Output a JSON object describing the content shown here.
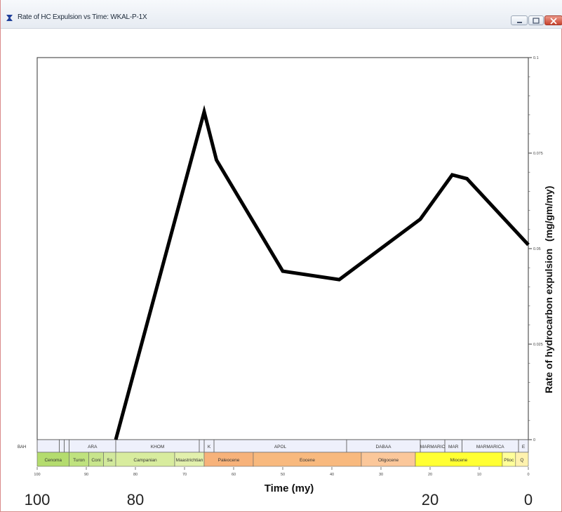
{
  "window": {
    "title": "Rate of HC Expulsion vs Time: WKAL-P-1X",
    "icon": "app-icon",
    "buttons": [
      "minimize-button",
      "maximize-button",
      "close-button"
    ]
  },
  "chart_data": {
    "type": "line",
    "x": [
      84,
      66,
      63.5,
      50,
      38.5,
      22,
      15.5,
      12.5,
      0
    ],
    "y": [
      0,
      0.0858,
      0.0732,
      0.0441,
      0.0419,
      0.0577,
      0.0693,
      0.0683,
      0.051
    ],
    "xlabel": "Time (my)",
    "ylabel": "Rate of hydrocarbon expulsion",
    "ylabel_units": "(mg/gm/my)",
    "xlim": [
      100,
      0
    ],
    "ylim": [
      0,
      0.1
    ],
    "x_ticks": [
      "100",
      "90",
      "80",
      "70",
      "60",
      "50",
      "40",
      "30",
      "20",
      "10",
      "0"
    ],
    "x_big_labels": [
      "100",
      "80",
      "20",
      "0"
    ],
    "y_ticks": [
      "0",
      "0.025",
      "0.05",
      "0.075",
      "0.1"
    ],
    "grid": false,
    "line_color": "#000000"
  },
  "strat": {
    "row1_label": "BAH",
    "formations": [
      {
        "name": "",
        "start": 100,
        "end": 95.5
      },
      {
        "name": "",
        "start": 95.5,
        "end": 94.5
      },
      {
        "name": "",
        "start": 94.5,
        "end": 93.5
      },
      {
        "name": "ARA",
        "start": 93.5,
        "end": 84
      },
      {
        "name": "KHOM",
        "start": 84,
        "end": 67
      },
      {
        "name": "",
        "start": 67,
        "end": 66
      },
      {
        "name": "K",
        "start": 66,
        "end": 64
      },
      {
        "name": "APOL",
        "start": 64,
        "end": 37
      },
      {
        "name": "DABAA",
        "start": 37,
        "end": 22
      },
      {
        "name": "MARMARIC",
        "start": 22,
        "end": 17
      },
      {
        "name": "MAR",
        "start": 17,
        "end": 13.5
      },
      {
        "name": "MARMARICA",
        "start": 13.5,
        "end": 2
      },
      {
        "name": "E",
        "start": 2,
        "end": 0
      }
    ],
    "epochs": [
      {
        "name": "Cenoma",
        "start": 100,
        "end": 93.5,
        "color": "#b4dc6e"
      },
      {
        "name": "Turon",
        "start": 93.5,
        "end": 89.5,
        "color": "#bfe27e"
      },
      {
        "name": "Coni",
        "start": 89.5,
        "end": 86.5,
        "color": "#c8e58c"
      },
      {
        "name": "Sa",
        "start": 86.5,
        "end": 84,
        "color": "#d2e99c"
      },
      {
        "name": "Campanian",
        "start": 84,
        "end": 72,
        "color": "#d8ec9e"
      },
      {
        "name": "Maastrichtian",
        "start": 72,
        "end": 66,
        "color": "#e2f0ac"
      },
      {
        "name": "Paleocene",
        "start": 66,
        "end": 56,
        "color": "#f7b27a"
      },
      {
        "name": "Eocene",
        "start": 56,
        "end": 34,
        "color": "#f8b97e"
      },
      {
        "name": "Oligocene",
        "start": 34,
        "end": 23,
        "color": "#fbc79a"
      },
      {
        "name": "Miocene",
        "start": 23,
        "end": 5.3,
        "color": "#ffff33"
      },
      {
        "name": "Plioc",
        "start": 5.3,
        "end": 2.6,
        "color": "#ffff99"
      },
      {
        "name": "Q",
        "start": 2.6,
        "end": 0,
        "color": "#fff2ae"
      }
    ]
  }
}
